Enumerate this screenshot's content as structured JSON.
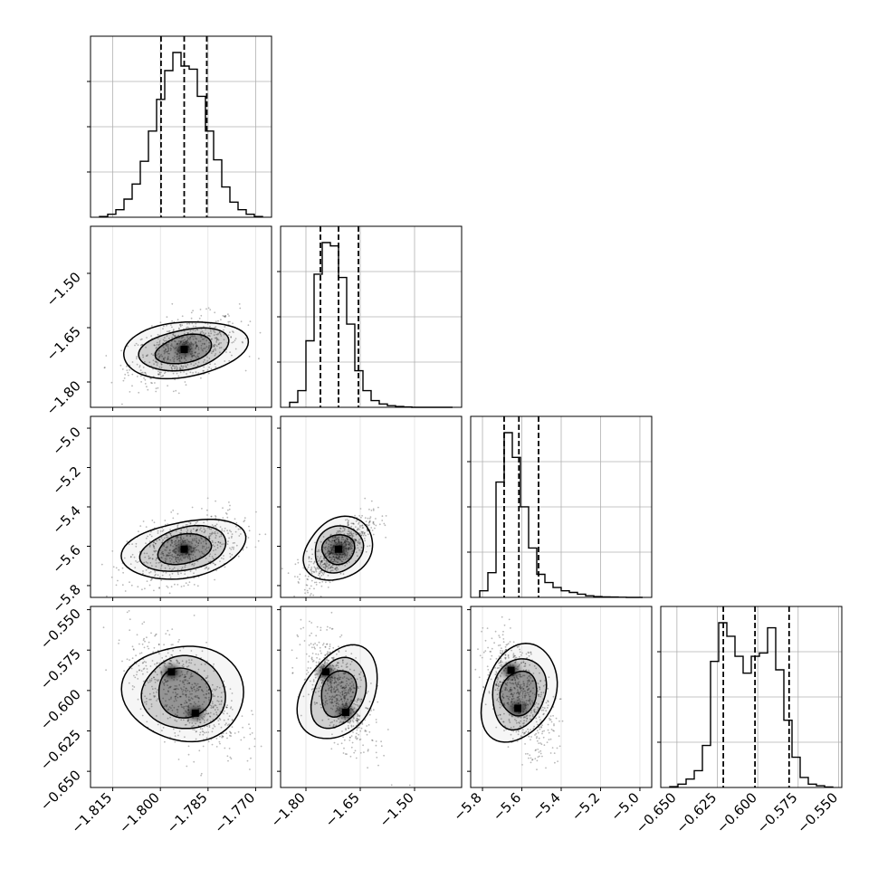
{
  "chart_data": {
    "type": "corner",
    "title": "",
    "grid": true,
    "colors": {
      "line": "#000000",
      "grid": "#b0b0b0",
      "scatter": "#000000"
    },
    "params": [
      {
        "ticks": [
          -1.815,
          -1.8,
          -1.785,
          -1.77
        ],
        "tick_labels": [
          "−1.815",
          "−1.800",
          "−1.785",
          "−1.770"
        ],
        "range": [
          -1.822,
          -1.765
        ],
        "quantiles": [
          -1.7998,
          -1.7925,
          -1.7854
        ],
        "hist": [
          0.5,
          2,
          5,
          12,
          22,
          37,
          57,
          78,
          97,
          109,
          100,
          98,
          80,
          57,
          38,
          20,
          10,
          5,
          2,
          0.5
        ]
      },
      {
        "ticks": [
          -1.8,
          -1.65,
          -1.5
        ],
        "tick_labels": [
          "−1.80",
          "−1.65",
          "−1.50"
        ],
        "range": [
          -1.87,
          -1.37
        ],
        "quantiles": [
          -1.76,
          -1.71,
          -1.655
        ],
        "hist": [
          3,
          10,
          40,
          80,
          99,
          97,
          78,
          50,
          22,
          10,
          4,
          2,
          1,
          0.5,
          0.2,
          0,
          0,
          0,
          0,
          0
        ]
      },
      {
        "ticks": [
          -5.8,
          -5.6,
          -5.4,
          -5.2,
          -5.0
        ],
        "tick_labels": [
          "−5.8",
          "−5.6",
          "−5.4",
          "−5.2",
          "−5.0"
        ],
        "range": [
          -5.86,
          -4.94
        ],
        "quantiles": [
          -5.69,
          -5.615,
          -5.515
        ],
        "hist": [
          4,
          15,
          70,
          100,
          85,
          55,
          30,
          14,
          9,
          6,
          4,
          3,
          2,
          1,
          0.5,
          0.3,
          0.2,
          0.1,
          0,
          0
        ]
      },
      {
        "ticks": [
          -0.65,
          -0.625,
          -0.6,
          -0.575,
          -0.55
        ],
        "tick_labels": [
          "−0.650",
          "−0.625",
          "−0.600",
          "−0.575",
          "−0.550"
        ],
        "range": [
          -0.66,
          -0.548
        ],
        "quantiles": [
          -0.6213,
          -0.6017,
          -0.5806
        ],
        "hist": [
          0.5,
          2,
          5,
          10,
          25,
          75,
          98,
          90,
          78,
          68,
          78,
          80,
          95,
          70,
          40,
          18,
          6,
          2,
          1,
          0.3
        ]
      }
    ],
    "pairs": [
      {
        "row": 1,
        "col": 0,
        "mean": [
          -1.7925,
          -1.71
        ],
        "sd": [
          0.0075,
          0.04
        ],
        "rho": 0.45,
        "modes": []
      },
      {
        "row": 2,
        "col": 0,
        "mean": [
          -1.7925,
          -5.615
        ],
        "sd": [
          0.0075,
          0.075
        ],
        "rho": 0.42,
        "modes": []
      },
      {
        "row": 2,
        "col": 1,
        "mean": [
          -1.71,
          -5.615
        ],
        "sd": [
          0.04,
          0.075
        ],
        "rho": 0.75,
        "modes": []
      },
      {
        "row": 3,
        "col": 0,
        "mean": [
          -1.7925,
          -0.6017
        ],
        "sd": [
          0.0075,
          0.015
        ],
        "rho": -0.55,
        "modes": [
          [
            -1.7965,
            -0.5885
          ],
          [
            -1.789,
            -0.614
          ]
        ]
      },
      {
        "row": 3,
        "col": 1,
        "mean": [
          -1.71,
          -0.6017
        ],
        "sd": [
          0.04,
          0.015
        ],
        "rho": -0.6,
        "modes": [
          [
            -1.745,
            -0.5885
          ],
          [
            -1.69,
            -0.6135
          ]
        ]
      },
      {
        "row": 3,
        "col": 2,
        "mean": [
          -5.615,
          -0.6017
        ],
        "sd": [
          0.075,
          0.015
        ],
        "rho": -0.55,
        "modes": [
          [
            -5.655,
            -0.5875
          ],
          [
            -5.62,
            -0.611
          ]
        ]
      }
    ]
  }
}
